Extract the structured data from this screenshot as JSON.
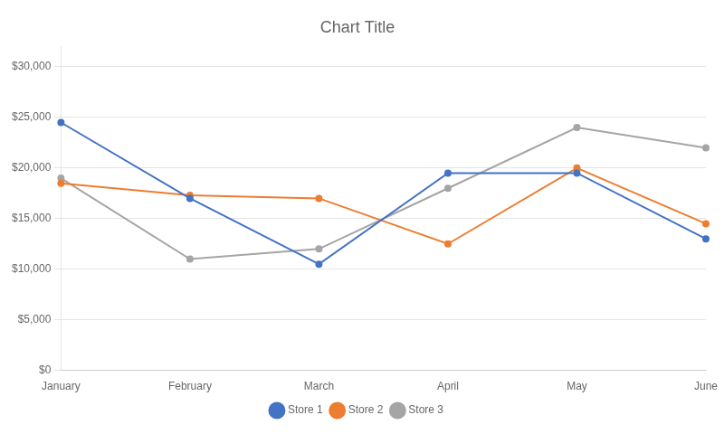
{
  "chart_data": {
    "type": "line",
    "title": "Chart Title",
    "categories": [
      "January",
      "February",
      "March",
      "April",
      "May",
      "June"
    ],
    "series": [
      {
        "name": "Store 1",
        "color": "#4472C4",
        "values": [
          24500,
          17000,
          10500,
          19500,
          19500,
          13000
        ]
      },
      {
        "name": "Store 2",
        "color": "#ED7D31",
        "values": [
          18500,
          17300,
          17000,
          12500,
          20000,
          14500
        ]
      },
      {
        "name": "Store 3",
        "color": "#A5A5A5",
        "values": [
          19000,
          11000,
          12000,
          18000,
          24000,
          22000
        ]
      }
    ],
    "ylim": [
      0,
      32000
    ],
    "yticks": [
      {
        "value": 0,
        "label": "$0"
      },
      {
        "value": 5000,
        "label": "$5,000"
      },
      {
        "value": 10000,
        "label": "$10,000"
      },
      {
        "value": 15000,
        "label": "$15,000"
      },
      {
        "value": 20000,
        "label": "$20,000"
      },
      {
        "value": 25000,
        "label": "$25,000"
      },
      {
        "value": 30000,
        "label": "$30,000"
      }
    ],
    "grid": true,
    "legend": "bottom",
    "marker": "circle"
  }
}
